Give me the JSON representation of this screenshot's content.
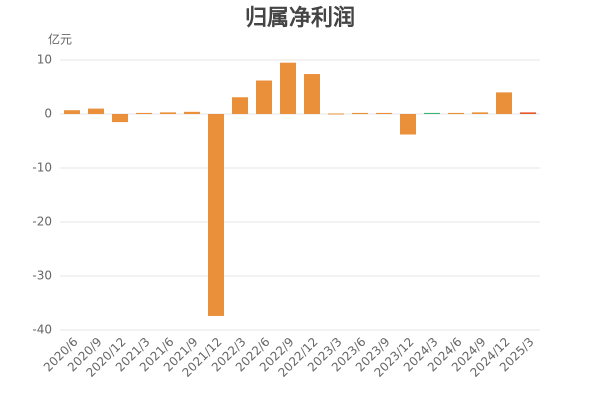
{
  "chart_data": {
    "type": "bar",
    "title": "归属净利润",
    "y_label": "亿元",
    "categories": [
      "2020/6",
      "2020/9",
      "2020/12",
      "2021/3",
      "2021/6",
      "2021/9",
      "2021/12",
      "2022/3",
      "2022/6",
      "2022/9",
      "2022/12",
      "2023/3",
      "2023/6",
      "2023/9",
      "2023/12",
      "2024/3",
      "2024/6",
      "2024/9",
      "2024/12",
      "2025/3"
    ],
    "values": [
      0.7,
      1.0,
      -1.5,
      0.2,
      0.3,
      0.4,
      -37.4,
      3.1,
      6.2,
      9.5,
      7.4,
      0.1,
      0.2,
      0.2,
      -3.8,
      0.2,
      0.2,
      0.3,
      4.0,
      0.3
    ],
    "colors": [
      "#ea8f3a",
      "#ea8f3a",
      "#ea8f3a",
      "#ea8f3a",
      "#ea8f3a",
      "#ea8f3a",
      "#ea8f3a",
      "#ea8f3a",
      "#ea8f3a",
      "#ea8f3a",
      "#ea8f3a",
      "#ea8f3a",
      "#ea8f3a",
      "#ea8f3a",
      "#ea8f3a",
      "#3cb371",
      "#ea8f3a",
      "#ea8f3a",
      "#ea8f3a",
      "#e8562a"
    ],
    "ylim": [
      -40,
      10
    ],
    "yticks": [
      10,
      0,
      -10,
      -20,
      -30,
      -40
    ],
    "grid": true
  }
}
